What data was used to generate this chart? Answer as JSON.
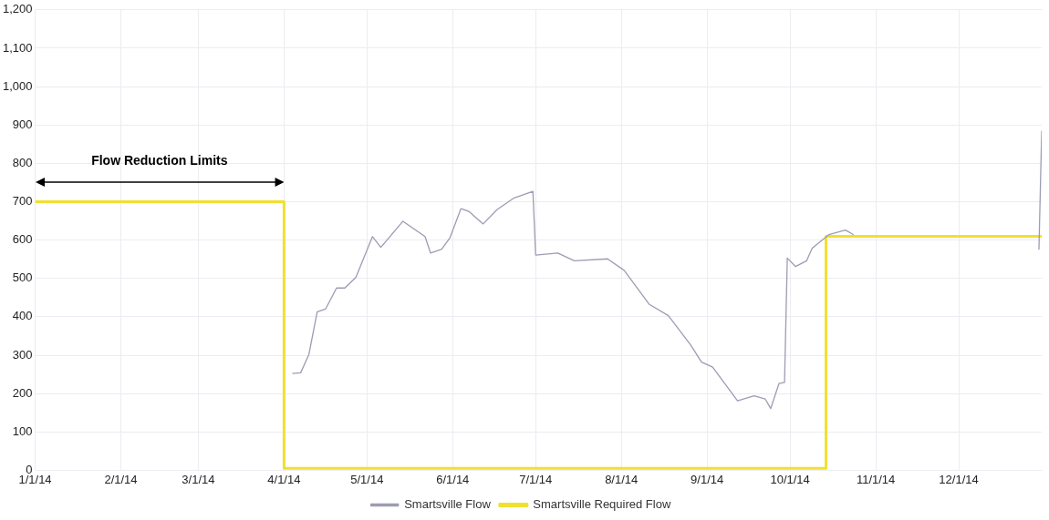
{
  "chart_data": {
    "type": "line",
    "xlim": [
      "2014-01-01",
      "2014-12-31"
    ],
    "xticks": [
      {
        "value": "2014-01-01",
        "label": "1/1/14"
      },
      {
        "value": "2014-02-01",
        "label": "2/1/14"
      },
      {
        "value": "2014-03-01",
        "label": "3/1/14"
      },
      {
        "value": "2014-04-01",
        "label": "4/1/14"
      },
      {
        "value": "2014-05-01",
        "label": "5/1/14"
      },
      {
        "value": "2014-06-01",
        "label": "6/1/14"
      },
      {
        "value": "2014-07-01",
        "label": "7/1/14"
      },
      {
        "value": "2014-08-01",
        "label": "8/1/14"
      },
      {
        "value": "2014-09-01",
        "label": "9/1/14"
      },
      {
        "value": "2014-10-01",
        "label": "10/1/14"
      },
      {
        "value": "2014-11-01",
        "label": "11/1/14"
      },
      {
        "value": "2014-12-01",
        "label": "12/1/14"
      }
    ],
    "ylim": [
      0,
      1200
    ],
    "yticks": [
      0,
      100,
      200,
      300,
      400,
      500,
      600,
      700,
      800,
      900,
      {
        "value": 1000,
        "label": "1,000"
      },
      {
        "value": 1100,
        "label": "1,100"
      },
      {
        "value": 1200,
        "label": "1,200"
      }
    ],
    "grid": true,
    "legend": "bottom",
    "marker": "none",
    "annotations": [
      "Flow Reduction Limits"
    ],
    "series": [
      {
        "name": "Smartsville Flow",
        "color": "#9c9cb4",
        "x": [
          "2014-04-04",
          "2014-04-07",
          "2014-04-10",
          "2014-04-13",
          "2014-04-16",
          "2014-04-20",
          "2014-04-23",
          "2014-04-27",
          "2014-05-03",
          "2014-05-06",
          "2014-05-14",
          "2014-05-22",
          "2014-05-24",
          "2014-05-28",
          "2014-05-31",
          "2014-06-04",
          "2014-06-07",
          "2014-06-12",
          "2014-06-17",
          "2014-06-23",
          "2014-06-30",
          "2014-07-01",
          "2014-07-09",
          "2014-07-15",
          "2014-07-27",
          "2014-08-02",
          "2014-08-11",
          "2014-08-18",
          "2014-08-26",
          "2014-08-30",
          "2014-09-03",
          "2014-09-12",
          "2014-09-18",
          "2014-09-22",
          "2014-09-24",
          "2014-09-27",
          "2014-09-29",
          "2014-09-30",
          "2014-10-03",
          "2014-10-07",
          "2014-10-09",
          "2014-10-15",
          "2014-10-21",
          "2014-10-24",
          "2014-11-15",
          "2014-12-30",
          "2014-12-31"
        ],
        "values": [
          252,
          254,
          302,
          413,
          420,
          475,
          475,
          503,
          609,
          581,
          649,
          609,
          566,
          576,
          606,
          682,
          674,
          642,
          679,
          709,
          727,
          561,
          566,
          546,
          551,
          521,
          433,
          403,
          327,
          282,
          269,
          181,
          194,
          186,
          161,
          226,
          229,
          553,
          531,
          546,
          579,
          614,
          626,
          614,
          null,
          575,
          885
        ]
      },
      {
        "name": "Smartsville Required Flow",
        "color": "#f0e030",
        "type": "step",
        "x": [
          "2014-01-01",
          "2014-04-01",
          "2014-10-14",
          "2014-12-31"
        ],
        "values": [
          700,
          5,
          610,
          610
        ]
      }
    ]
  }
}
